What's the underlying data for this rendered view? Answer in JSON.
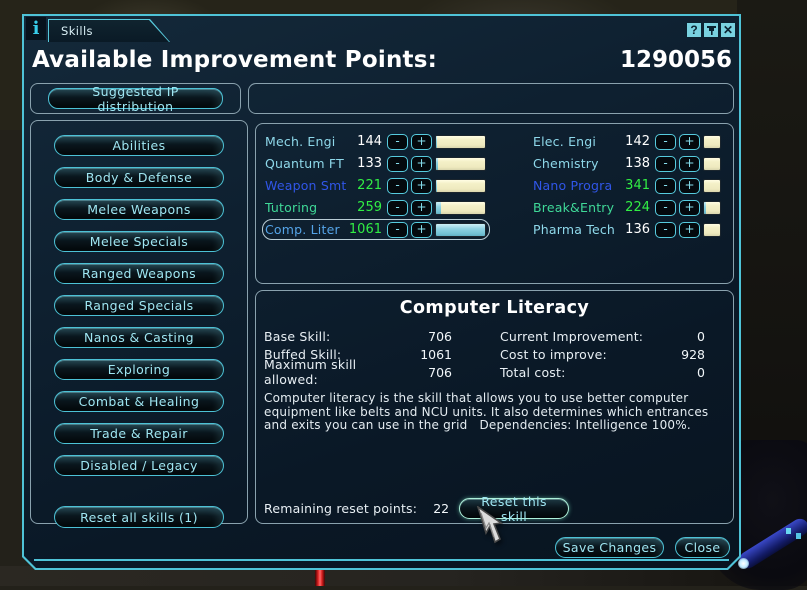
{
  "window": {
    "tab": "Skills",
    "titlebar": {
      "info_glyph": "i",
      "help_glyph": "?",
      "pin_icon": "push-pin",
      "close_glyph": "✕"
    },
    "header": {
      "label": "Available Improvement Points:",
      "value": "1290056"
    },
    "suggested_button": "Suggested IP distribution",
    "sidebar": {
      "categories": [
        "Abilities",
        "Body & Defense",
        "Melee Weapons",
        "Melee Specials",
        "Ranged Weapons",
        "Ranged Specials",
        "Nanos & Casting",
        "Exploring",
        "Combat & Healing",
        "Trade & Repair",
        "Disabled / Legacy"
      ],
      "reset_all": "Reset all skills (1)"
    },
    "controls": {
      "minus": "-",
      "plus": "+"
    },
    "skills": {
      "left": [
        {
          "label": "Mech. Engi",
          "value": "144",
          "label_color": "cyan",
          "value_color": "white",
          "bar_pct": 2,
          "selected": false
        },
        {
          "label": "Quantum FT",
          "value": "133",
          "label_color": "cyan",
          "value_color": "white",
          "bar_pct": 4,
          "selected": false
        },
        {
          "label": "Weapon Smt",
          "value": "221",
          "label_color": "blue",
          "value_color": "green",
          "bar_pct": 3,
          "selected": false
        },
        {
          "label": "Tutoring",
          "value": "259",
          "label_color": "teal",
          "value_color": "green",
          "bar_pct": 10,
          "selected": false
        },
        {
          "label": "Comp. Liter",
          "value": "1061",
          "label_color": "comp",
          "value_color": "green",
          "bar_pct": 100,
          "selected": true
        }
      ],
      "right": [
        {
          "label": "Elec. Engi",
          "value": "142",
          "label_color": "cyan",
          "value_color": "white",
          "bar_pct": 1,
          "selected": false
        },
        {
          "label": "Chemistry",
          "value": "138",
          "label_color": "cyan",
          "value_color": "white",
          "bar_pct": 1,
          "selected": false
        },
        {
          "label": "Nano Progra",
          "value": "341",
          "label_color": "blue",
          "value_color": "green",
          "bar_pct": 1,
          "selected": false
        },
        {
          "label": "Break&Entry",
          "value": "224",
          "label_color": "teal",
          "value_color": "green",
          "bar_pct": 10,
          "selected": false
        },
        {
          "label": "Pharma Tech",
          "value": "136",
          "label_color": "cyan",
          "value_color": "white",
          "bar_pct": 1,
          "selected": false
        }
      ]
    },
    "detail": {
      "title": "Computer Literacy",
      "stats_left": [
        {
          "label": "Base Skill:",
          "value": "706"
        },
        {
          "label": "Buffed Skill:",
          "value": "1061"
        },
        {
          "label": "Maximum skill allowed:",
          "value": "706"
        }
      ],
      "stats_right": [
        {
          "label": "Current Improvement:",
          "value": "0"
        },
        {
          "label": "Cost to improve:",
          "value": "928"
        },
        {
          "label": "Total cost:",
          "value": "0"
        }
      ],
      "description": "Computer literacy is the skill that allows you to use better computer equipment like belts and NCU units. It also determines which entrances and exits you can use in the grid   Dependencies: Intelligence 100%.",
      "reset_label": "Remaining reset points:",
      "reset_value": "22",
      "reset_button": "Reset this skill"
    },
    "footer": {
      "save": "Save Changes",
      "close": "Close"
    }
  },
  "colors": {
    "frame": "#4fc3d7",
    "window_bg": "#0e2030",
    "bar_bg": "#f4f0c8",
    "bar_fill": "#8fd2e2",
    "label_cyan": "#8ed8ea",
    "label_blue": "#3056e8",
    "label_teal": "#3fd998",
    "label_selected": "#55a4e8",
    "value_white": "#ffffff",
    "value_green": "#31ee44"
  }
}
